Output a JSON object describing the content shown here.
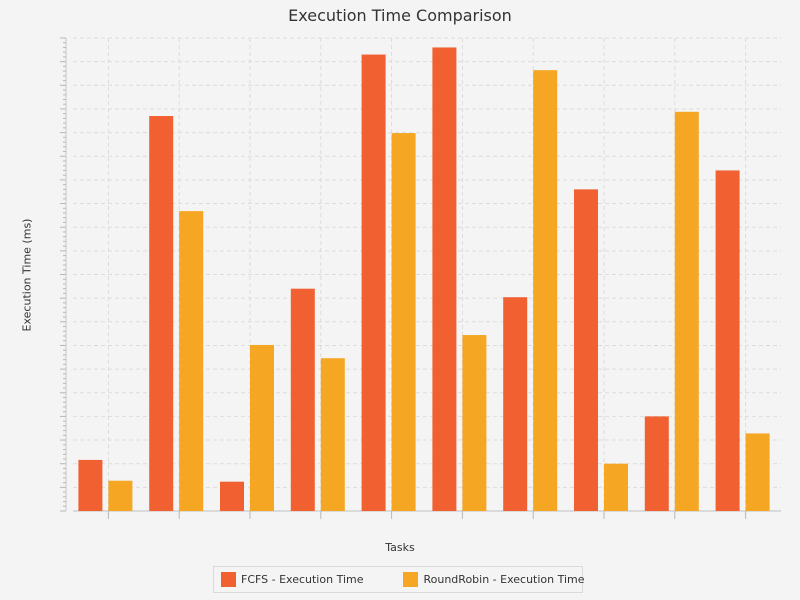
{
  "chart_data": {
    "type": "bar",
    "title": "Execution Time Comparison",
    "xlabel": "Tasks",
    "ylabel": "Execution Time (ms)",
    "categories": [
      "",
      "",
      "",
      "",
      "",
      "",
      "",
      "",
      "",
      ""
    ],
    "series": [
      {
        "name": "FCFS - Execution Time",
        "color": "#f06030",
        "values": [
          10.8,
          83.5,
          6.2,
          47.0,
          96.5,
          98.0,
          45.2,
          68.0,
          20.0,
          72.0
        ]
      },
      {
        "name": "RoundRobin - Execution Time",
        "color": "#f5a623",
        "values": [
          6.4,
          63.4,
          35.1,
          32.3,
          79.9,
          37.2,
          93.2,
          10.0,
          84.4,
          16.4
        ]
      }
    ],
    "ylim": [
      0,
      100
    ],
    "grid": true,
    "legend": "bottom"
  }
}
